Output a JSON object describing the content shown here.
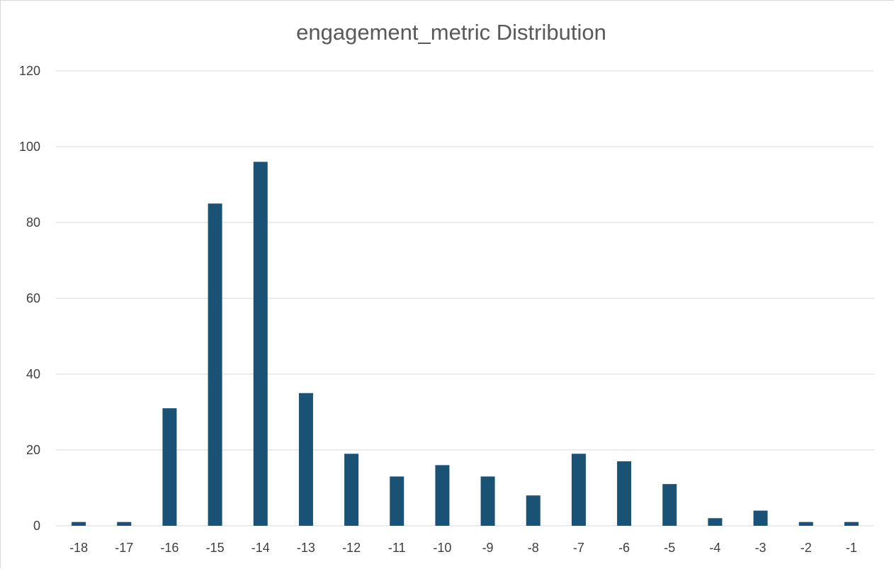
{
  "chart_data": {
    "type": "bar",
    "title": "engagement_metric Distribution",
    "xlabel": "",
    "ylabel": "",
    "categories": [
      "-18",
      "-17",
      "-16",
      "-15",
      "-14",
      "-13",
      "-12",
      "-11",
      "-10",
      "-9",
      "-8",
      "-7",
      "-6",
      "-5",
      "-4",
      "-3",
      "-2",
      "-1"
    ],
    "values": [
      1,
      1,
      31,
      85,
      96,
      35,
      19,
      13,
      16,
      13,
      8,
      19,
      17,
      11,
      2,
      4,
      1,
      1
    ],
    "ylim": [
      0,
      120
    ],
    "yticks": [
      0,
      20,
      40,
      60,
      80,
      100,
      120
    ],
    "grid": true,
    "legend": "none",
    "colors": {
      "bar": "#1a5276",
      "grid": "#d9d9d9",
      "title": "#595959",
      "tick": "#404040"
    }
  }
}
